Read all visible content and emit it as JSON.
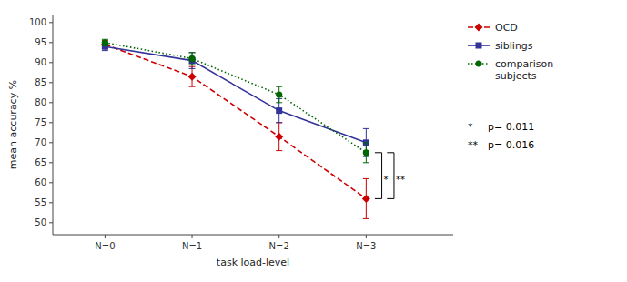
{
  "chart_data": {
    "type": "line",
    "xlabel": "task load-level",
    "ylabel": "mean accuracy %",
    "categories": [
      "N=0",
      "N=1",
      "N=2",
      "N=3"
    ],
    "series": [
      {
        "name": "OCD",
        "color": "#cc0000",
        "marker": "diamond",
        "line_style": "dashed",
        "values": [
          94.5,
          86.5,
          71.5,
          56.0
        ],
        "errors": [
          1.0,
          2.5,
          3.5,
          5.0
        ]
      },
      {
        "name": "siblings",
        "color": "#333399",
        "marker": "square",
        "line_style": "solid",
        "values": [
          94.0,
          90.5,
          78.0,
          70.0
        ],
        "errors": [
          1.0,
          2.0,
          3.0,
          3.5
        ]
      },
      {
        "name": "comparison\nsubjects",
        "color": "#006600",
        "marker": "circle",
        "line_style": "dotted",
        "values": [
          95.0,
          91.0,
          82.0,
          67.5
        ],
        "errors": [
          0.8,
          1.5,
          2.0,
          2.5
        ]
      }
    ],
    "ylim": [
      47,
      102
    ],
    "yticks": [
      50,
      55,
      60,
      65,
      70,
      75,
      80,
      85,
      90,
      95,
      100
    ],
    "grid": false,
    "legend": "right",
    "annotations": [
      {
        "text": "*",
        "label": "p= 0.011"
      },
      {
        "text": "**",
        "label": "p= 0.016"
      }
    ]
  }
}
